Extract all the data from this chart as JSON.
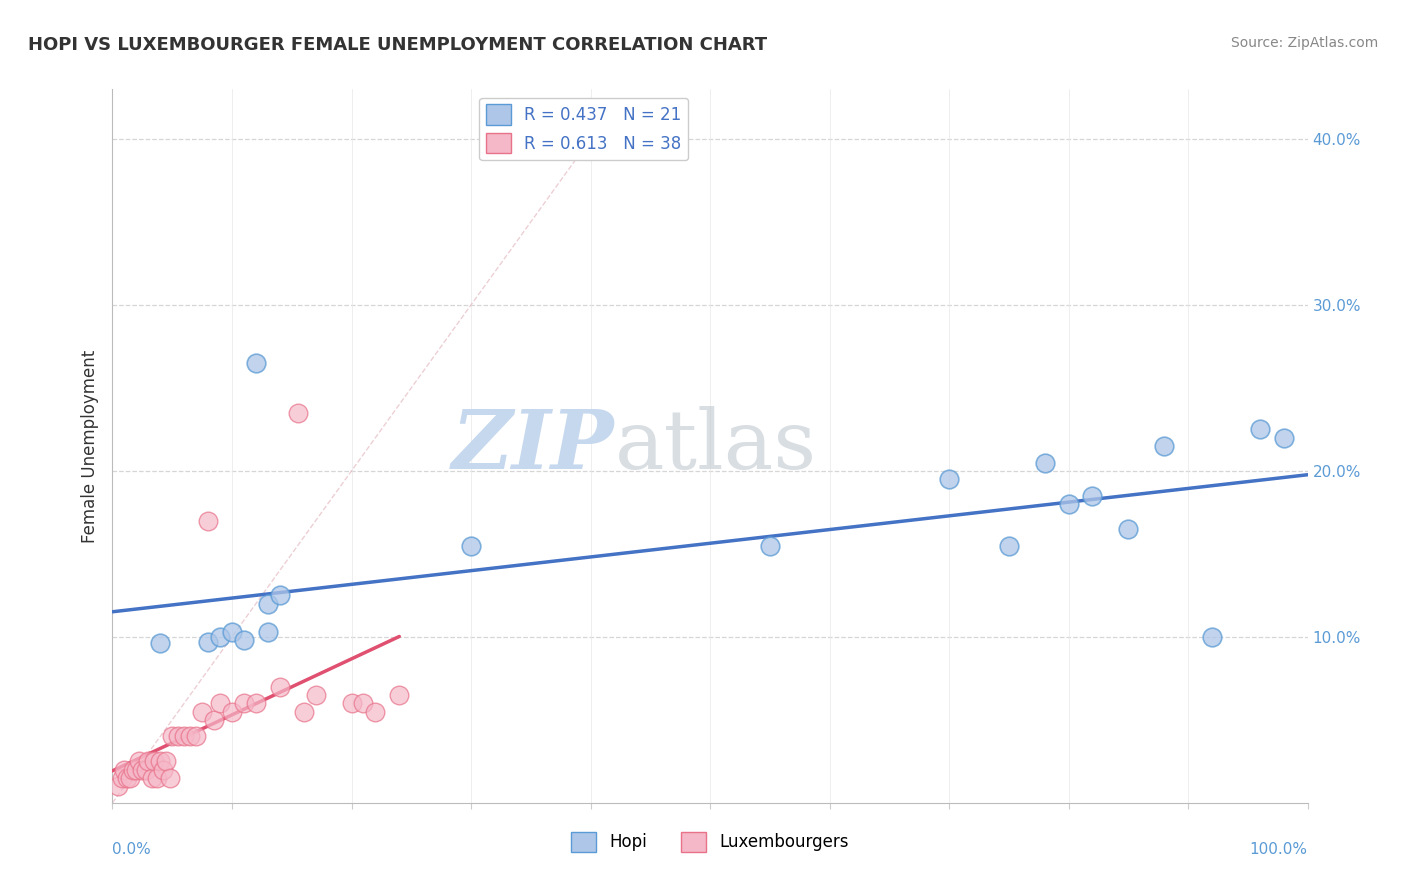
{
  "title": "HOPI VS LUXEMBOURGER FEMALE UNEMPLOYMENT CORRELATION CHART",
  "source": "Source: ZipAtlas.com",
  "ylabel": "Female Unemployment",
  "yticks": [
    0.0,
    0.1,
    0.2,
    0.3,
    0.4
  ],
  "ytick_labels": [
    "",
    "10.0%",
    "20.0%",
    "30.0%",
    "40.0%"
  ],
  "xlim": [
    0,
    1.0
  ],
  "ylim": [
    0,
    0.43
  ],
  "hopi_R": 0.437,
  "hopi_N": 21,
  "luxembourger_R": 0.613,
  "luxembourger_N": 38,
  "hopi_color": "#aec6e8",
  "luxembourger_color": "#f5b8c8",
  "hopi_edge_color": "#5b9bd5",
  "luxembourger_edge_color": "#e8728a",
  "hopi_line_color": "#4472c4",
  "luxembourger_line_color": "#e05070",
  "diagonal_color": "#e8b0b8",
  "watermark_zip": "ZIP",
  "watermark_atlas": "atlas",
  "watermark_color": "#c5d8ee",
  "watermark_atlas_color": "#c8c8c8",
  "hopi_x": [
    0.04,
    0.08,
    0.09,
    0.1,
    0.11,
    0.12,
    0.13,
    0.13,
    0.14,
    0.3,
    0.55,
    0.7,
    0.75,
    0.78,
    0.8,
    0.82,
    0.85,
    0.88,
    0.92,
    0.96,
    0.98
  ],
  "hopi_y": [
    0.096,
    0.097,
    0.1,
    0.103,
    0.098,
    0.265,
    0.103,
    0.12,
    0.125,
    0.155,
    0.155,
    0.195,
    0.155,
    0.205,
    0.18,
    0.185,
    0.165,
    0.215,
    0.1,
    0.225,
    0.22
  ],
  "lux_x": [
    0.005,
    0.008,
    0.01,
    0.012,
    0.015,
    0.017,
    0.02,
    0.022,
    0.025,
    0.028,
    0.03,
    0.033,
    0.035,
    0.037,
    0.04,
    0.042,
    0.045,
    0.048,
    0.05,
    0.055,
    0.06,
    0.065,
    0.07,
    0.075,
    0.08,
    0.085,
    0.09,
    0.1,
    0.11,
    0.12,
    0.14,
    0.155,
    0.16,
    0.17,
    0.2,
    0.21,
    0.22,
    0.24
  ],
  "lux_y": [
    0.01,
    0.015,
    0.02,
    0.015,
    0.015,
    0.02,
    0.02,
    0.025,
    0.02,
    0.02,
    0.025,
    0.015,
    0.025,
    0.015,
    0.025,
    0.02,
    0.025,
    0.015,
    0.04,
    0.04,
    0.04,
    0.04,
    0.04,
    0.055,
    0.17,
    0.05,
    0.06,
    0.055,
    0.06,
    0.06,
    0.07,
    0.235,
    0.055,
    0.065,
    0.06,
    0.06,
    0.055,
    0.065
  ]
}
